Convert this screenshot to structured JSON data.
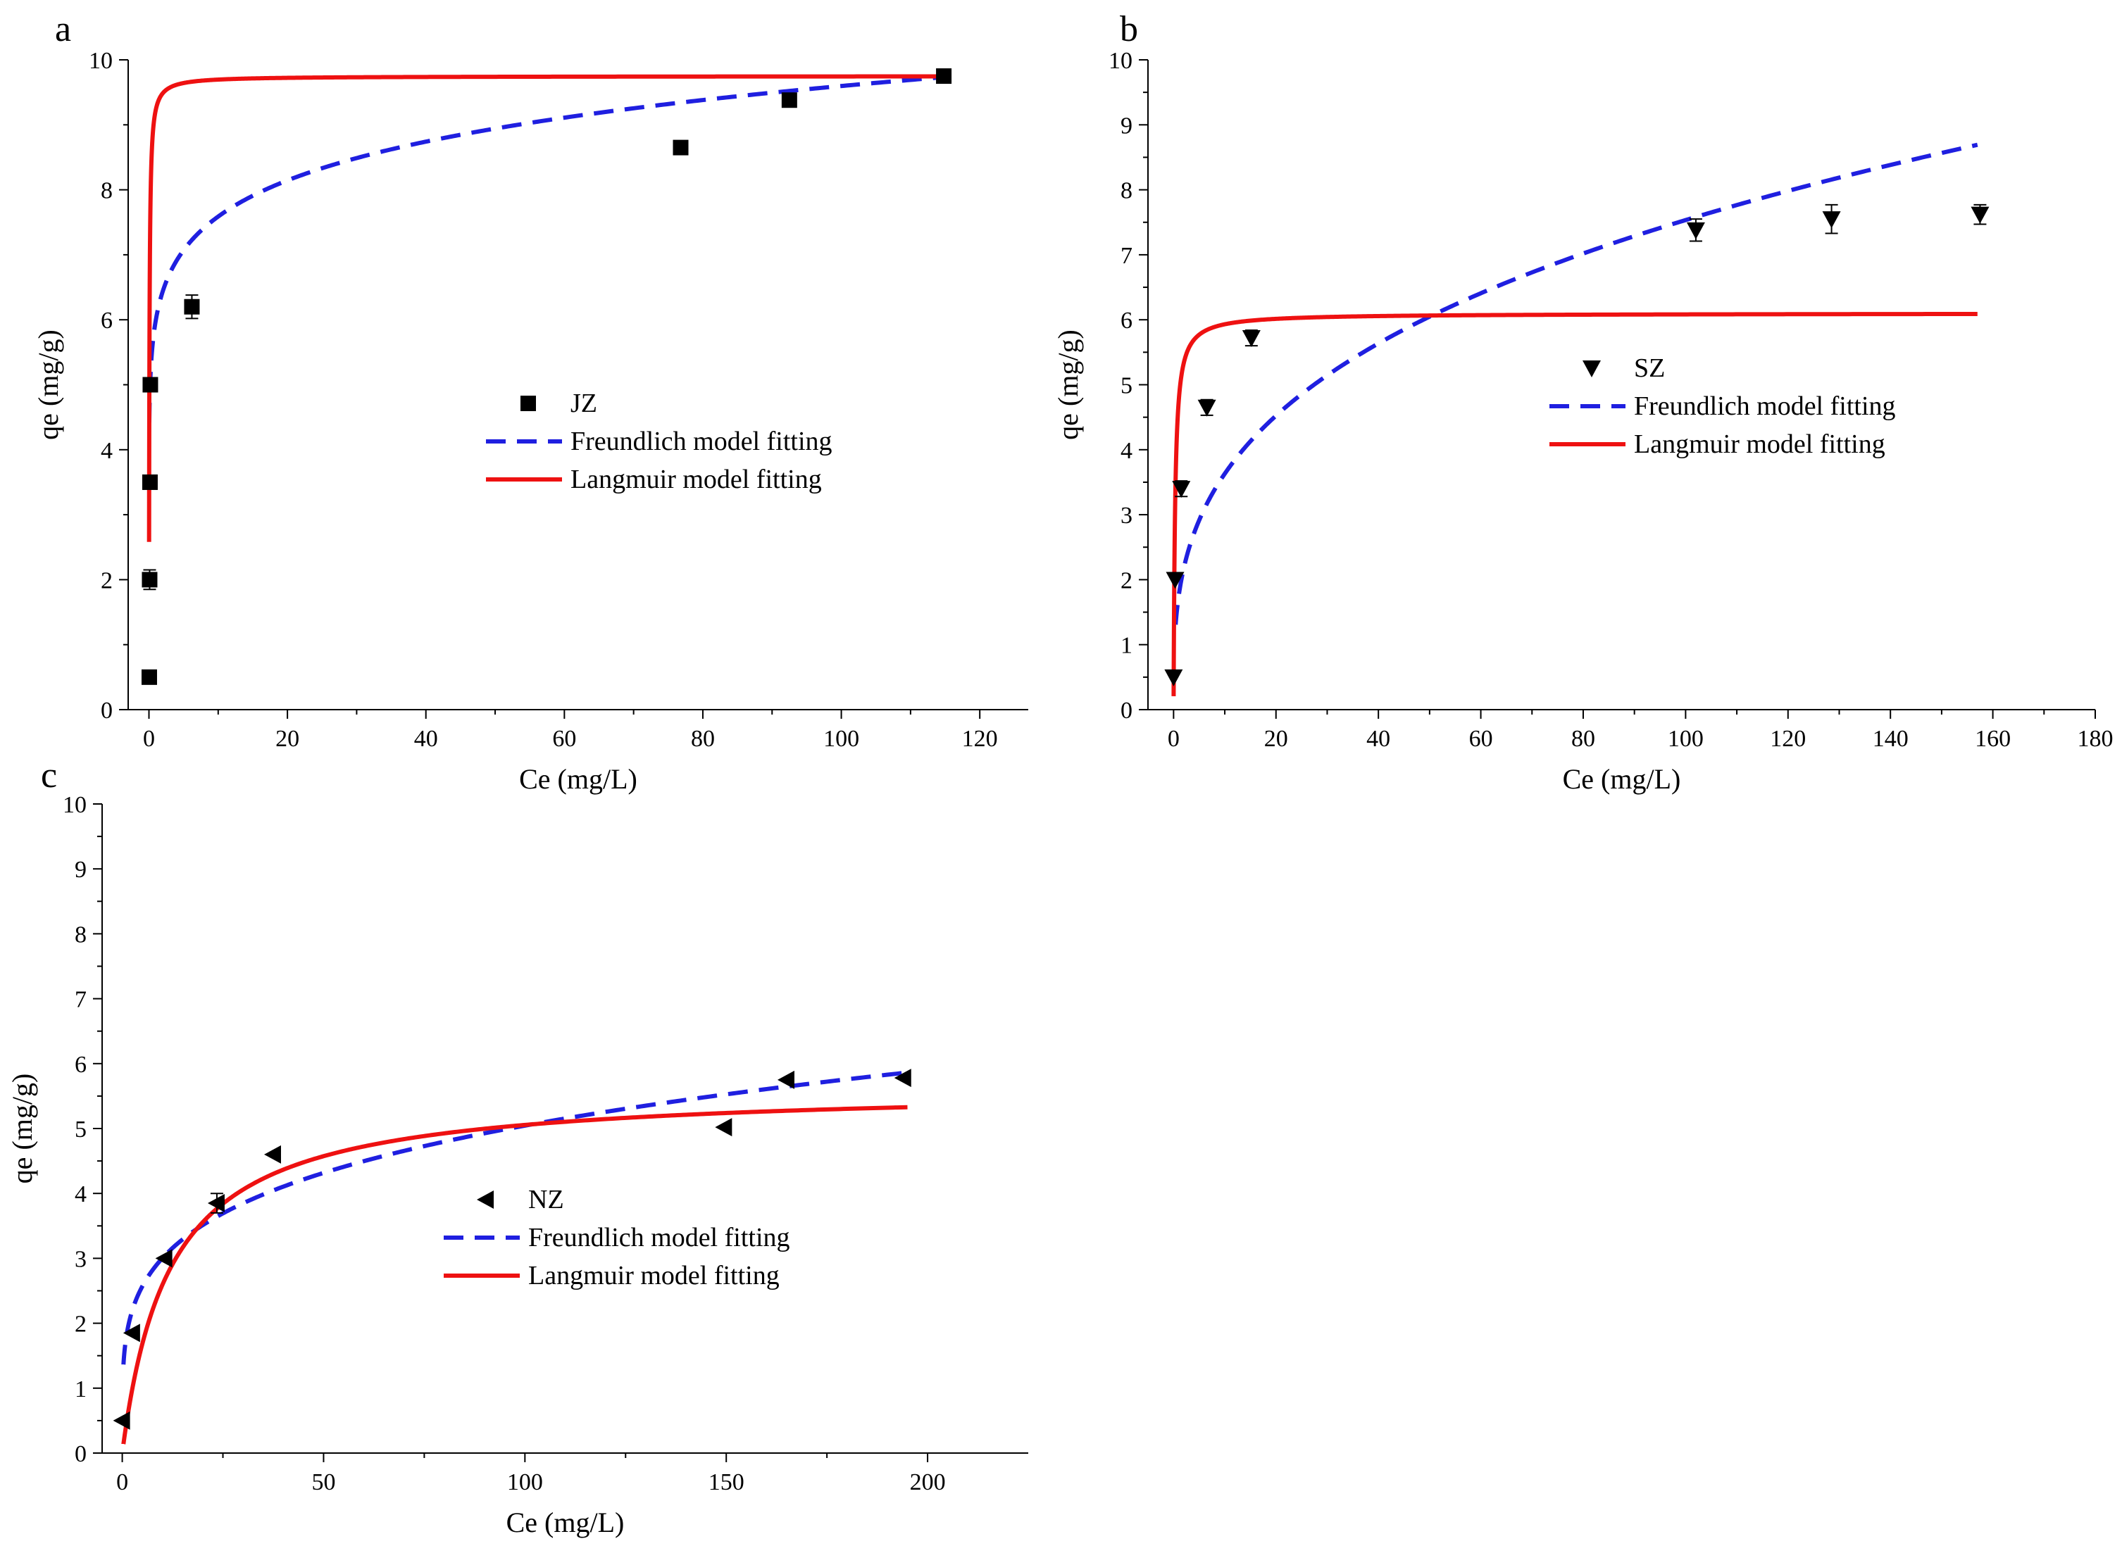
{
  "chart_data": [
    {
      "panel": "a",
      "type": "scatter",
      "xlabel": "Ce (mg/L)",
      "ylabel": "qe (mg/g)",
      "xlim": [
        -3,
        127
      ],
      "ylim": [
        0,
        10
      ],
      "xticks": [
        0,
        20,
        40,
        60,
        80,
        100,
        120
      ],
      "yticks": [
        0,
        2,
        4,
        6,
        8,
        10
      ],
      "marker": "square",
      "points": [
        {
          "x": 0.05,
          "y": 0.5,
          "err": 0.0
        },
        {
          "x": 0.1,
          "y": 2.0,
          "err": 0.15
        },
        {
          "x": 0.15,
          "y": 3.5,
          "err": 0.0
        },
        {
          "x": 0.2,
          "y": 5.0,
          "err": 0.0
        },
        {
          "x": 6.2,
          "y": 6.2,
          "err": 0.18
        },
        {
          "x": 76.8,
          "y": 8.65,
          "err": 0.0
        },
        {
          "x": 92.5,
          "y": 9.38,
          "err": 0.0
        },
        {
          "x": 114.8,
          "y": 9.75,
          "err": 0.0
        }
      ],
      "models": {
        "freundlich": {
          "kf": 6.0,
          "n": 0.102,
          "x_range": [
            0.05,
            115
          ]
        },
        "langmuir": {
          "qm": 9.75,
          "kl": 18.0,
          "x_range": [
            0.02,
            115
          ]
        }
      },
      "legend": {
        "position": "center-right",
        "entries": [
          "JZ",
          "Freundlich model fitting",
          "Langmuir model fitting"
        ]
      }
    },
    {
      "panel": "b",
      "type": "scatter",
      "xlabel": "Ce (mg/L)",
      "ylabel": "qe (mg/g)",
      "xlim": [
        -5,
        180
      ],
      "ylim": [
        0,
        10
      ],
      "xticks": [
        0,
        20,
        40,
        60,
        80,
        100,
        120,
        140,
        160,
        180
      ],
      "yticks": [
        0,
        1,
        2,
        3,
        4,
        5,
        6,
        7,
        8,
        9,
        10
      ],
      "marker": "triangle-down",
      "points": [
        {
          "x": 0.0,
          "y": 0.5,
          "err": 0.0
        },
        {
          "x": 0.3,
          "y": 2.0,
          "err": 0.0
        },
        {
          "x": 1.5,
          "y": 3.4,
          "err": 0.12
        },
        {
          "x": 6.5,
          "y": 4.65,
          "err": 0.12
        },
        {
          "x": 15.2,
          "y": 5.72,
          "err": 0.12
        },
        {
          "x": 102.0,
          "y": 7.38,
          "err": 0.17
        },
        {
          "x": 128.5,
          "y": 7.55,
          "err": 0.22
        },
        {
          "x": 157.5,
          "y": 7.62,
          "err": 0.15
        }
      ],
      "models": {
        "freundlich": {
          "kf": 1.75,
          "n": 0.317,
          "x_range": [
            0.4,
            157
          ]
        },
        "langmuir": {
          "qm": 6.1,
          "kl": 3.5,
          "x_range": [
            0.01,
            157
          ]
        }
      },
      "legend": {
        "position": "center-right",
        "entries": [
          "SZ",
          "Freundlich model fitting",
          "Langmuir model fitting"
        ]
      }
    },
    {
      "panel": "c",
      "type": "scatter",
      "xlabel": "Ce (mg/L)",
      "ylabel": "qe (mg/g)",
      "xlim": [
        -5,
        225
      ],
      "ylim": [
        0,
        10
      ],
      "xticks": [
        0,
        50,
        100,
        150,
        200
      ],
      "yticks": [
        0,
        1,
        2,
        3,
        4,
        5,
        6,
        7,
        8,
        9,
        10
      ],
      "marker": "triangle-left",
      "points": [
        {
          "x": 0.0,
          "y": 0.5,
          "err": 0.0
        },
        {
          "x": 2.5,
          "y": 1.85,
          "err": 0.0
        },
        {
          "x": 10.5,
          "y": 3.0,
          "err": 0.0
        },
        {
          "x": 23.5,
          "y": 3.85,
          "err": 0.15
        },
        {
          "x": 37.5,
          "y": 4.6,
          "err": 0.0
        },
        {
          "x": 149.5,
          "y": 5.02,
          "err": 0.0
        },
        {
          "x": 165.0,
          "y": 5.75,
          "err": 0.0
        },
        {
          "x": 194.0,
          "y": 5.78,
          "err": 0.0
        }
      ],
      "models": {
        "freundlich": {
          "kf": 1.79,
          "n": 0.225,
          "x_range": [
            0.3,
            195
          ]
        },
        "langmuir": {
          "qm": 5.65,
          "kl": 0.085,
          "x_range": [
            0.3,
            195
          ]
        }
      },
      "legend": {
        "position": "center",
        "entries": [
          "NZ",
          "Freundlich model fitting",
          "Langmuir model fitting"
        ]
      }
    }
  ],
  "colors": {
    "freundlich": "#1f1fe0",
    "langmuir": "#ee1111",
    "marker": "#000000"
  }
}
